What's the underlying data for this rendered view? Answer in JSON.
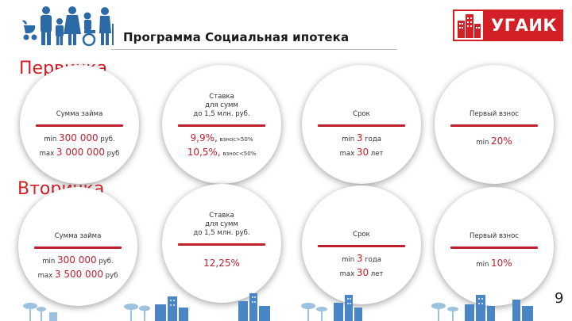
{
  "header": {
    "title": "Программа Социальная ипотека",
    "logo_text": "УГАИК",
    "colors": {
      "accent": "#d32027",
      "text": "#1a1a1a"
    },
    "family_icon": "family-silhouette-icon"
  },
  "sections": [
    {
      "title": "Первичка",
      "cards": [
        {
          "label": "Сумма займа",
          "min_prefix": "min",
          "min_value": "300 000",
          "min_unit": "руб.",
          "max_prefix": "max",
          "max_value": "3 000 000",
          "max_unit": "руб"
        },
        {
          "label_line1": "Ставка",
          "label_line2": "для сумм",
          "label_line3": "до 1,5 млн. руб.",
          "rate1": "9,9%,",
          "rate1_note": "взнос>50%",
          "rate2": "10,5%,",
          "rate2_note": "взнос<50%"
        },
        {
          "label": "Срок",
          "min_prefix": "min",
          "min_value": "3",
          "min_unit": "года",
          "max_prefix": "max",
          "max_value": "30",
          "max_unit": "лет"
        },
        {
          "label": "Первый взнос",
          "prefix": "min",
          "value": "20%"
        }
      ]
    },
    {
      "title": "Вторичка",
      "cards": [
        {
          "label": "Сумма займа",
          "min_prefix": "min",
          "min_value": "300 000",
          "min_unit": "руб.",
          "max_prefix": "max",
          "max_value": "3 500 000",
          "max_unit": "руб"
        },
        {
          "label_line1": "Ставка",
          "label_line2": "для сумм",
          "label_line3": "до 1,5 млн. руб.",
          "rate": "12,25%"
        },
        {
          "label": "Срок",
          "min_prefix": "min",
          "min_value": "3",
          "min_unit": "года",
          "max_prefix": "max",
          "max_value": "30",
          "max_unit": "лет"
        },
        {
          "label": "Первый взнос",
          "prefix": "min",
          "value": "10%"
        }
      ]
    }
  ],
  "footer": {
    "page_number": "9",
    "decoration": "city-skyline-icon"
  }
}
